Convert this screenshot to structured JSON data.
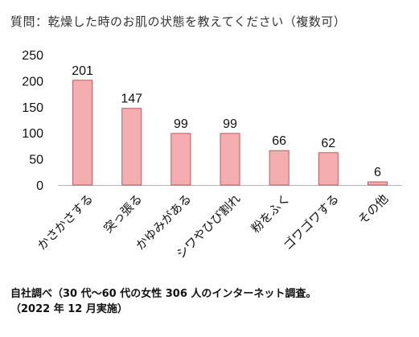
{
  "chart_data": {
    "type": "bar",
    "title": "質問：乾燥した時のお肌の状態を教えてください（複数可）",
    "categories": [
      "かさかさする",
      "突っ張る",
      "かゆみがある",
      "シワやひび割れ",
      "粉をふく",
      "ゴワゴワする",
      "その他"
    ],
    "values": [
      201,
      147,
      99,
      99,
      66,
      62,
      6
    ],
    "ylim": [
      0,
      250
    ],
    "yticks": [
      "0",
      "50",
      "100",
      "150",
      "200",
      "250"
    ],
    "xlabel": "",
    "ylabel": "",
    "grid": false,
    "legend": "none",
    "bar_fill": "#f4aeb0",
    "bar_stroke": "#c4585c"
  },
  "footnote": {
    "line1": "自社調べ（30 代～60 代の女性 306 人のインターネット調査。",
    "line2": "（2022 年 12 月実施）"
  }
}
